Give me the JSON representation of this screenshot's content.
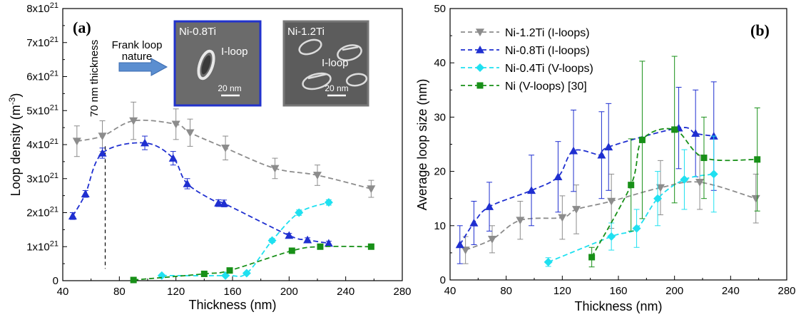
{
  "chart_data": [
    {
      "type": "line",
      "panel": "(a)",
      "xlabel": "Thickness (nm)",
      "ylabel": "Loop density (m",
      "ylabel_sup": "-3",
      "ylabel_end": ")",
      "xlim": [
        40,
        280
      ],
      "ylim": [
        0,
        8e+21
      ],
      "xticks": [
        "40",
        "80",
        "120",
        "160",
        "200",
        "240",
        "280"
      ],
      "yticks": [
        {
          "base": "0",
          "exp": ""
        },
        {
          "base": "1x10",
          "exp": "21"
        },
        {
          "base": "2x10",
          "exp": "21"
        },
        {
          "base": "3x10",
          "exp": "21"
        },
        {
          "base": "4x10",
          "exp": "21"
        },
        {
          "base": "5x10",
          "exp": "21"
        },
        {
          "base": "6x10",
          "exp": "21"
        },
        {
          "base": "7x10",
          "exp": "21"
        },
        {
          "base": "8x10",
          "exp": "21"
        }
      ],
      "annotations": {
        "thickness_line_x": 70,
        "thickness_label": "70 nm thickness",
        "frank_label_1": "Frank loop",
        "frank_label_2": "nature"
      },
      "insets": [
        {
          "label": "Ni-0.8Ti",
          "loop_label": "I-loop",
          "scale": "20 nm",
          "border": "#2233cc"
        },
        {
          "label": "Ni-1.2Ti",
          "loop_label": "I-loop",
          "scale": "20 nm",
          "border": "#777777"
        }
      ],
      "series": [
        {
          "key": "ni12",
          "color": "#8c8c8c",
          "marker": "triangle-down",
          "x": [
            50,
            68,
            90,
            120,
            130,
            155,
            190,
            220,
            258
          ],
          "y": [
            4.1e+21,
            4.25e+21,
            4.7e+21,
            4.6e+21,
            4.35e+21,
            3.9e+21,
            3.3e+21,
            3.1e+21,
            2.7e+21
          ],
          "err": [
            4.5e+20,
            4.5e+20,
            5.5e+20,
            4.5e+20,
            4e+20,
            3.5e+20,
            3e+20,
            3e+20,
            2.5e+20
          ]
        },
        {
          "key": "ni08",
          "color": "#1f2fd0",
          "marker": "triangle-up",
          "x": [
            47,
            56,
            68,
            98,
            118,
            128,
            150,
            154,
            200,
            213,
            228
          ],
          "y": [
            1.9e+21,
            2.55e+21,
            3.75e+21,
            4.05e+21,
            3.6e+21,
            2.85e+21,
            2.28e+21,
            2.27e+21,
            1.33e+21,
            1.2e+21,
            1.1e+21
          ],
          "err": [
            1e+20,
            1e+20,
            1.5e+20,
            2e+20,
            2e+20,
            1.5e+20,
            1e+20,
            1e+20,
            6e+19,
            6e+19,
            6e+19
          ]
        },
        {
          "key": "ni04",
          "color": "#1fe0f0",
          "marker": "diamond",
          "x": [
            110,
            155,
            170,
            188,
            207,
            228
          ],
          "y": [
            1.5e+20,
            1.5e+20,
            2.2e+20,
            1.18e+21,
            2e+21,
            2.3e+21
          ],
          "err": [
            3e+19,
            3e+19,
            3e+19,
            6e+19,
            8e+19,
            8e+19
          ]
        },
        {
          "key": "ni",
          "color": "#189018",
          "marker": "square",
          "x": [
            90,
            140,
            158,
            202,
            222,
            258
          ],
          "y": [
            2e+19,
            2e+20,
            3e+20,
            8.8e+20,
            1e+21,
            1e+21
          ],
          "err": [
            2e+19,
            2e+19,
            3e+19,
            5e+19,
            5e+19,
            5e+19
          ]
        }
      ]
    },
    {
      "type": "line",
      "panel": "(b)",
      "xlabel": "Thickness (nm)",
      "ylabel": "Average loop size (nm)",
      "xlim": [
        40,
        280
      ],
      "ylim": [
        0,
        50
      ],
      "xticks": [
        "40",
        "80",
        "120",
        "160",
        "200",
        "240",
        "280"
      ],
      "yticks": [
        "0",
        "10",
        "20",
        "30",
        "40",
        "50"
      ],
      "legend_position": "top-left",
      "series": [
        {
          "key": "ni12",
          "name": "Ni-1.2Ti (I-loops)",
          "color": "#8c8c8c",
          "marker": "triangle-down",
          "x": [
            51,
            70,
            90,
            120,
            130,
            155,
            190,
            218,
            258
          ],
          "y": [
            5.5,
            7.5,
            11,
            11.5,
            13,
            14.5,
            17,
            18,
            15
          ],
          "err": [
            2.5,
            2.5,
            3.5,
            4,
            4.5,
            5,
            5,
            5,
            4.5
          ]
        },
        {
          "key": "ni08",
          "name": "Ni-0.8Ti (I-loops)",
          "color": "#1f2fd0",
          "marker": "triangle-up",
          "x": [
            47,
            57,
            68,
            98,
            117,
            128,
            148,
            153,
            203,
            215,
            228
          ],
          "y": [
            6.5,
            10.5,
            13.5,
            16.5,
            19,
            23.8,
            23,
            24.5,
            28,
            27,
            26.5
          ],
          "err": [
            3.5,
            4,
            4.5,
            6.5,
            6.5,
            7.5,
            8,
            8,
            7.5,
            8,
            10
          ]
        },
        {
          "key": "ni04",
          "name": "Ni-0.4Ti (V-loops)",
          "color": "#1fe0f0",
          "marker": "diamond",
          "x": [
            110,
            155,
            173,
            188,
            207,
            228
          ],
          "y": [
            3.3,
            8,
            9.5,
            15,
            18.5,
            19.5
          ],
          "err": [
            0.8,
            2.5,
            3.5,
            5,
            5.5,
            7
          ]
        },
        {
          "key": "ni",
          "name": "Ni (V-loops) [30]",
          "color": "#189018",
          "marker": "square",
          "x": [
            141,
            169,
            177,
            200,
            221,
            259
          ],
          "y": [
            4.2,
            17.5,
            25.8,
            27.7,
            22.5,
            22.2
          ],
          "err": [
            1.8,
            8.5,
            14.5,
            13.5,
            7.5,
            9.5
          ]
        }
      ]
    }
  ]
}
